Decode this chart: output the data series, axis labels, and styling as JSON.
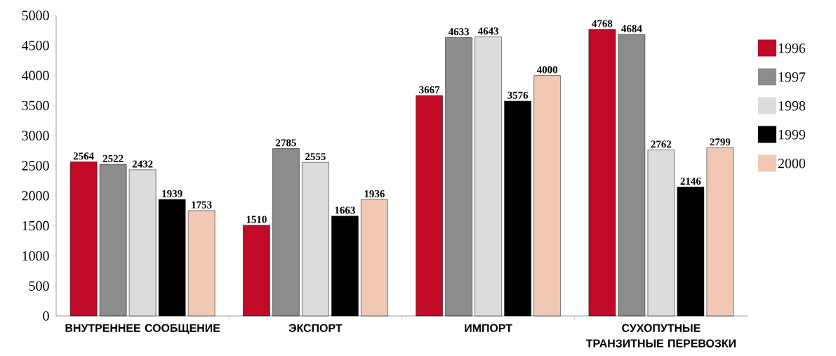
{
  "chart_data": {
    "type": "bar",
    "categories": [
      "ВНУТРЕННЕЕ СООБЩЕНИЕ",
      "ЭКСПОРТ",
      "ИМПОРТ",
      "СУХОПУТНЫЕ ТРАНЗИТНЫЕ ПЕРЕВОЗКИ"
    ],
    "series": [
      {
        "name": "1996",
        "color": "#c00a28",
        "values": [
          2564,
          1510,
          3667,
          4768
        ]
      },
      {
        "name": "1997",
        "color": "#8c8c8c",
        "values": [
          2522,
          2785,
          4633,
          4684
        ]
      },
      {
        "name": "1998",
        "color": "#dcdcdc",
        "values": [
          2432,
          2555,
          4643,
          2762
        ]
      },
      {
        "name": "1999",
        "color": "#000000",
        "values": [
          1939,
          1663,
          3576,
          2146
        ]
      },
      {
        "name": "2000",
        "color": "#f0c8b4",
        "values": [
          1753,
          1936,
          4000,
          2799
        ]
      }
    ],
    "ylim": [
      0,
      5000
    ],
    "yticks": [
      0,
      500,
      1000,
      1500,
      2000,
      2500,
      3000,
      3500,
      4000,
      4500,
      5000
    ],
    "data_labels": true,
    "legend": "right",
    "grid": false
  }
}
